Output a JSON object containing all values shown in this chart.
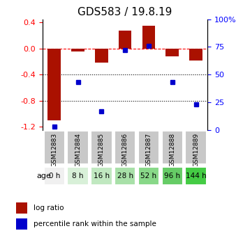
{
  "title": "GDS583 / 19.8.19",
  "gsm_labels": [
    "GSM12883",
    "GSM12884",
    "GSM12885",
    "GSM12886",
    "GSM12887",
    "GSM12888",
    "GSM12889"
  ],
  "age_labels": [
    "0 h",
    "8 h",
    "16 h",
    "28 h",
    "52 h",
    "96 h",
    "144 h"
  ],
  "log_ratio": [
    -1.1,
    -0.05,
    -0.22,
    0.28,
    0.35,
    -0.12,
    -0.18
  ],
  "percentile": [
    3,
    43,
    17,
    72,
    76,
    43,
    23
  ],
  "bar_color": "#aa1100",
  "dot_color": "#0000cc",
  "ylim_left": [
    -1.25,
    0.45
  ],
  "ylim_right": [
    0,
    100
  ],
  "yticks_left": [
    0.4,
    0.0,
    -0.4,
    -0.8,
    -1.2
  ],
  "yticks_right": [
    100,
    75,
    50,
    25,
    0
  ],
  "age_bg_colors": [
    "#f0f0f0",
    "#d8f0d8",
    "#c0e8c0",
    "#a8e0a8",
    "#88d888",
    "#66cc66",
    "#44cc44"
  ],
  "gsm_bg_color": "#c8c8c8",
  "legend_items": [
    "log ratio",
    "percentile rank within the sample"
  ],
  "legend_colors": [
    "#aa1100",
    "#0000cc"
  ]
}
